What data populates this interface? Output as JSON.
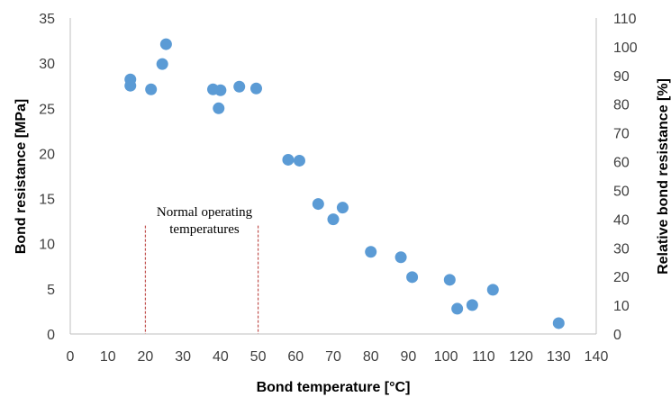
{
  "chart_data": {
    "type": "scatter",
    "title": "",
    "xlabel": "Bond temperature  [°C]",
    "ylabel": "Bond resistance [MPa]",
    "y2label": "Relative bond resistance [%]",
    "xlim": [
      0,
      140
    ],
    "ylim": [
      0,
      35
    ],
    "y2lim": [
      0,
      110
    ],
    "x_ticks": [
      0,
      10,
      20,
      30,
      40,
      50,
      60,
      70,
      80,
      90,
      100,
      110,
      120,
      130,
      140
    ],
    "y_ticks": [
      0,
      5,
      10,
      15,
      20,
      25,
      30,
      35
    ],
    "y2_ticks": [
      0,
      10,
      20,
      30,
      40,
      50,
      60,
      70,
      80,
      90,
      100,
      110
    ],
    "grid": false,
    "legend": "none",
    "marker_color": "#5B9BD5",
    "reference_line_color": "#C0504D",
    "reference_lines": [
      20,
      50
    ],
    "annotation": {
      "line1": "Normal operating",
      "line2": "temperatures"
    },
    "points": [
      {
        "x": 16,
        "y": 28.2
      },
      {
        "x": 16,
        "y": 27.5
      },
      {
        "x": 21.5,
        "y": 27.1
      },
      {
        "x": 24.5,
        "y": 29.9
      },
      {
        "x": 25.5,
        "y": 32.1
      },
      {
        "x": 38,
        "y": 27.1
      },
      {
        "x": 39.5,
        "y": 25.0
      },
      {
        "x": 40,
        "y": 27.0
      },
      {
        "x": 45,
        "y": 27.4
      },
      {
        "x": 49.5,
        "y": 27.2
      },
      {
        "x": 58,
        "y": 19.3
      },
      {
        "x": 61,
        "y": 19.2
      },
      {
        "x": 66,
        "y": 14.4
      },
      {
        "x": 70,
        "y": 12.7
      },
      {
        "x": 72.5,
        "y": 14.0
      },
      {
        "x": 80,
        "y": 9.1
      },
      {
        "x": 88,
        "y": 8.5
      },
      {
        "x": 91,
        "y": 6.3
      },
      {
        "x": 101,
        "y": 6.0
      },
      {
        "x": 103,
        "y": 2.8
      },
      {
        "x": 107,
        "y": 3.2
      },
      {
        "x": 112.5,
        "y": 4.9
      },
      {
        "x": 130,
        "y": 1.2
      }
    ]
  }
}
